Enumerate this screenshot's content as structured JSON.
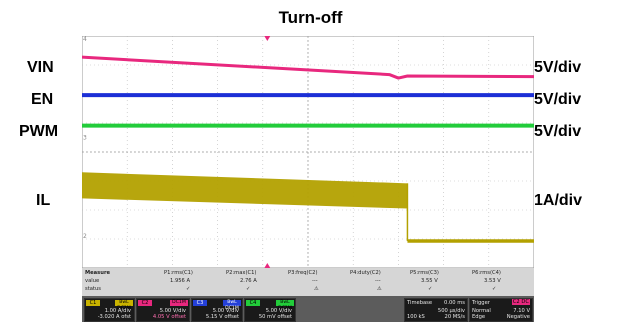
{
  "chart_data": {
    "type": "line",
    "title": "Turn-off",
    "scales": [
      {
        "channel": "VIN",
        "scale": "5V/div"
      },
      {
        "channel": "EN",
        "scale": "5V/div"
      },
      {
        "channel": "PWM",
        "scale": "5V/div"
      },
      {
        "channel": "IL",
        "scale": "1A/div"
      }
    ],
    "x_divisions": 10,
    "y_divisions": 8,
    "grid": true,
    "trigger_division": 4.1,
    "series": [
      {
        "name": "VIN",
        "color": "#e8287e",
        "x_div": [
          0,
          6.8,
          7.0,
          7.2,
          10
        ],
        "y_div": [
          7.27,
          6.67,
          6.55,
          6.62,
          6.6
        ],
        "thickness": 3
      },
      {
        "name": "EN",
        "color": "#1c2fd6",
        "x_div": [
          0,
          10
        ],
        "y_div": [
          5.96,
          5.96
        ],
        "thickness": 4
      },
      {
        "name": "PWM",
        "color": "#22cc3a",
        "x_div": [
          0,
          10
        ],
        "y_div": [
          4.91,
          4.91
        ],
        "thickness": 4
      },
      {
        "name": "IL",
        "color": "#b3a100",
        "band_x_div": [
          0,
          7.2
        ],
        "band_top_div": [
          3.3,
          2.92
        ],
        "band_bottom_div": [
          2.4,
          2.05
        ],
        "after_x_div": [
          7.2,
          10
        ],
        "after_y_div": 0.93
      }
    ],
    "ground_markers": [
      "4",
      "3",
      "2"
    ]
  },
  "measure": {
    "header": "Measure",
    "row_value": "value",
    "row_status": "status",
    "columns": [
      {
        "name": "P1:rms(C1)",
        "value": "1.956 A",
        "status": "✓"
      },
      {
        "name": "P2:max(C1)",
        "value": "2.76 A",
        "status": "✓"
      },
      {
        "name": "P3:freq(C2)",
        "value": "---",
        "status": "⚠"
      },
      {
        "name": "P4:duty(C2)",
        "value": "---",
        "status": "⚠"
      },
      {
        "name": "P5:rms(C3)",
        "value": "3.55 V",
        "status": "✓"
      },
      {
        "name": "P6:rms(C4)",
        "value": "3.53 V",
        "status": "✓"
      }
    ]
  },
  "channels": [
    {
      "tag": "C1",
      "tag_color": "#c9b300",
      "tag2": "BwL DC1M",
      "line1": "1.00 A/div",
      "line2": "-3.020 A ofst"
    },
    {
      "tag": "C2",
      "tag_color": "#e8287e",
      "tag2": "DC1M",
      "line1": "5.00 V/div",
      "line2": "4.05 V offset"
    },
    {
      "tag": "C3",
      "tag_color": "#2440d8",
      "tag2": "BwL DC1M",
      "line1": "5.00 V/div",
      "line2": "5.15 V offset"
    },
    {
      "tag": "C4",
      "tag_color": "#22cc3a",
      "tag2": "BwL DC1M",
      "line1": "5.00 V/div",
      "line2": "50 mV offset"
    }
  ],
  "timebase": {
    "label": "Timebase",
    "delay": "0.00 ms",
    "per_div": "500 µs/div",
    "samples": "100 kS",
    "rate": "20 MS/s"
  },
  "trigger": {
    "label": "Trigger",
    "channel": "C2 DC",
    "mode": "Normal",
    "level": "7.10 V",
    "type": "Edge",
    "slope": "Negative"
  },
  "colors": {
    "grid": "#b9b9b9",
    "plot_bg": "#ffffff",
    "trigger_marker": "#e8287e"
  }
}
